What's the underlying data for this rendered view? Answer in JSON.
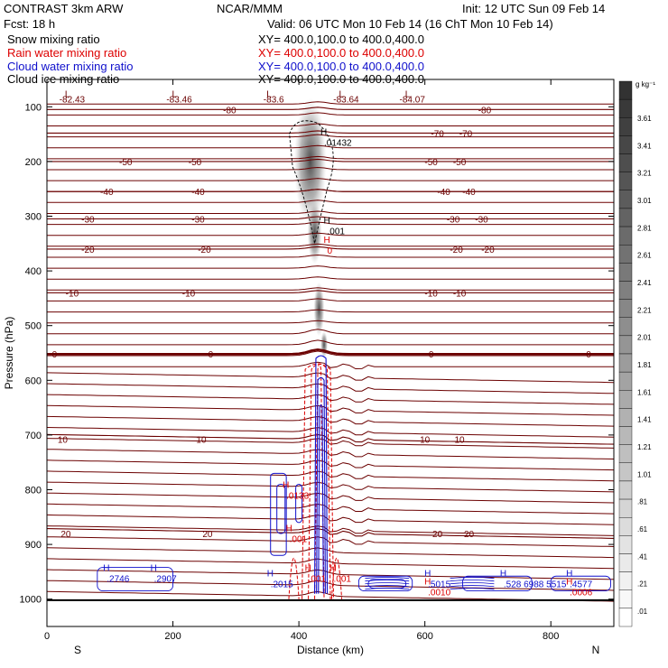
{
  "header": {
    "left_line1": "CONTRAST  3km ARW",
    "center_line1": "NCAR/MMM",
    "init": "Init: 12 UTC Sun 09 Feb 14",
    "fcst": "Fcst:   18 h",
    "valid": "Valid: 06 UTC Mon 10 Feb 14 (16 ChT Mon 10 Feb 14)",
    "fields": [
      {
        "name": "Snow mixing ratio",
        "xy": "XY= 400.0,100.0 to 400.0,400.0",
        "color": "#000000"
      },
      {
        "name": "Rain water mixing ratio",
        "xy": "XY= 400.0,100.0 to 400.0,400.0",
        "color": "#dd0000"
      },
      {
        "name": "Cloud water mixing ratio",
        "xy": "XY= 400.0,100.0 to 400.0,400.0",
        "color": "#1010cc"
      },
      {
        "name": "Cloud ice mixing ratio",
        "xy": "XY= 400.0,100.0 to 400.0,400.0",
        "color": "#000000"
      }
    ]
  },
  "chart_data": {
    "type": "cross-section contour",
    "xlabel": "Distance (km)",
    "ylabel": "Pressure (hPa)",
    "xlim": [
      0,
      900
    ],
    "ylim": [
      1050,
      50
    ],
    "x_ticks": [
      0,
      200,
      400,
      600,
      800
    ],
    "y_ticks": [
      100,
      200,
      300,
      400,
      500,
      600,
      700,
      800,
      900,
      1000
    ],
    "x_end_labels": {
      "left": "S",
      "right": "N"
    },
    "colorbar": {
      "units": "g kg⁻¹",
      "labels": [
        "3.61",
        "3.41",
        "3.21",
        "3.01",
        "2.81",
        "2.61",
        "2.41",
        "2.21",
        "2.01",
        "1.81",
        "1.61",
        "1.41",
        "1.21",
        "1.01",
        ".81",
        ".61",
        ".41",
        ".21",
        ".01"
      ]
    },
    "temperature_contours": [
      {
        "p": 105,
        "labels": [
          {
            "x": 695,
            "text": "-80"
          },
          {
            "x": 290,
            "text": "-80"
          }
        ]
      },
      {
        "p": 148,
        "labels": [
          {
            "x": 620,
            "text": "-70"
          },
          {
            "x": 665,
            "text": "-70"
          }
        ]
      },
      {
        "p": 200,
        "labels": [
          {
            "x": 125,
            "text": "-50"
          },
          {
            "x": 235,
            "text": "-50"
          },
          {
            "x": 610,
            "text": "-50"
          },
          {
            "x": 655,
            "text": "-50"
          }
        ]
      },
      {
        "p": 255,
        "labels": [
          {
            "x": 95,
            "text": "-40"
          },
          {
            "x": 240,
            "text": "-40"
          },
          {
            "x": 630,
            "text": "-40"
          },
          {
            "x": 670,
            "text": "-40"
          }
        ]
      },
      {
        "p": 305,
        "labels": [
          {
            "x": 65,
            "text": "-30"
          },
          {
            "x": 240,
            "text": "-30"
          },
          {
            "x": 645,
            "text": "-30"
          },
          {
            "x": 690,
            "text": "-30"
          }
        ]
      },
      {
        "p": 360,
        "labels": [
          {
            "x": 65,
            "text": "-20"
          },
          {
            "x": 250,
            "text": "-20"
          },
          {
            "x": 650,
            "text": "-20"
          },
          {
            "x": 700,
            "text": "-20"
          }
        ]
      },
      {
        "p": 440,
        "labels": [
          {
            "x": 40,
            "text": "-10"
          },
          {
            "x": 225,
            "text": "-10"
          },
          {
            "x": 610,
            "text": "-10"
          },
          {
            "x": 655,
            "text": "-10"
          }
        ]
      },
      {
        "p": 552,
        "labels": [
          {
            "x": 12,
            "text": "0"
          },
          {
            "x": 260,
            "text": "0"
          },
          {
            "x": 610,
            "text": "0"
          },
          {
            "x": 860,
            "text": "0"
          }
        ]
      },
      {
        "p": 708,
        "labels": [
          {
            "x": 25,
            "text": "10"
          },
          {
            "x": 245,
            "text": "10"
          },
          {
            "x": 600,
            "text": "10"
          },
          {
            "x": 655,
            "text": "10"
          }
        ]
      },
      {
        "p": 880,
        "labels": [
          {
            "x": 30,
            "text": "20"
          },
          {
            "x": 255,
            "text": "20"
          },
          {
            "x": 620,
            "text": "20"
          },
          {
            "x": 670,
            "text": "20"
          }
        ]
      }
    ],
    "top_low_labels": [
      {
        "x": 40,
        "text": "-82.43"
      },
      {
        "x": 210,
        "text": "-83.46"
      },
      {
        "x": 360,
        "text": "-83.6"
      },
      {
        "x": 475,
        "text": "-83.64"
      },
      {
        "x": 580,
        "text": "-84.07"
      }
    ],
    "high_labels": [
      {
        "x": 440,
        "p": 168,
        "text": ".01432",
        "color": "#000000"
      },
      {
        "x": 445,
        "p": 330,
        "text": ".001",
        "color": "#000000"
      },
      {
        "x": 445,
        "p": 365,
        "text": "0",
        "color": "#dd0000"
      },
      {
        "x": 380,
        "p": 813,
        "text": ".0133",
        "color": "#dd0000"
      },
      {
        "x": 385,
        "p": 892,
        "text": ".001",
        "color": "#dd0000"
      },
      {
        "x": 95,
        "p": 965,
        "text": ".2746",
        "color": "#1010cc"
      },
      {
        "x": 170,
        "p": 965,
        "text": ".2907",
        "color": "#1010cc"
      },
      {
        "x": 355,
        "p": 975,
        "text": ".2015",
        "color": "#1010cc"
      },
      {
        "x": 415,
        "p": 965,
        "text": ".001",
        "color": "#dd0000"
      },
      {
        "x": 455,
        "p": 965,
        "text": ".001",
        "color": "#dd0000"
      },
      {
        "x": 605,
        "p": 975,
        "text": ".5015",
        "color": "#1010cc"
      },
      {
        "x": 605,
        "p": 990,
        "text": ".0010",
        "color": "#dd0000"
      },
      {
        "x": 725,
        "p": 975,
        "text": ".528 6988 5515",
        "color": "#1010cc"
      },
      {
        "x": 830,
        "p": 975,
        "text": ".4577",
        "color": "#1010cc"
      },
      {
        "x": 830,
        "p": 990,
        "text": ".0006",
        "color": "#dd0000"
      }
    ]
  }
}
